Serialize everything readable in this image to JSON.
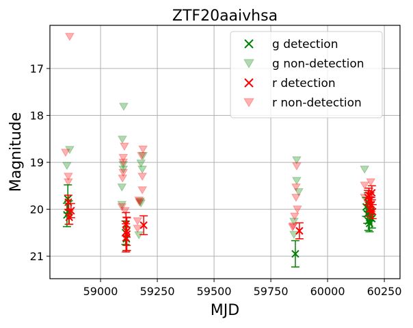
{
  "chart_data": {
    "type": "scatter",
    "title": "ZTF20aaivhsa",
    "xlabel": "MJD",
    "ylabel": "Magnitude",
    "xlim": [
      58777,
      60319
    ],
    "ylim": [
      21.48,
      16.08
    ],
    "y_inverted": true,
    "xticks": [
      59000,
      59250,
      59500,
      59750,
      60000,
      60250
    ],
    "yticks": [
      17,
      18,
      19,
      20,
      21
    ],
    "grid": true,
    "legend_position": "top-right",
    "series": [
      {
        "name": "g detection",
        "marker": "x",
        "color": "#008000",
        "points": [
          {
            "x": 58856,
            "y": 19.78,
            "err": 0.3
          },
          {
            "x": 58852,
            "y": 20.12,
            "err": 0.25
          },
          {
            "x": 58860,
            "y": 20.07,
            "err": 0.25
          },
          {
            "x": 59110,
            "y": 20.5,
            "err": 0.25
          },
          {
            "x": 59114,
            "y": 20.63,
            "err": 0.25
          },
          {
            "x": 59858,
            "y": 20.95,
            "err": 0.28
          },
          {
            "x": 60170,
            "y": 19.95,
            "err": 0.2
          },
          {
            "x": 60175,
            "y": 20.1,
            "err": 0.2
          },
          {
            "x": 60180,
            "y": 20.25,
            "err": 0.2
          },
          {
            "x": 60185,
            "y": 20.3,
            "err": 0.18
          },
          {
            "x": 60190,
            "y": 20.05,
            "err": 0.2
          },
          {
            "x": 60195,
            "y": 20.2,
            "err": 0.2
          },
          {
            "x": 60178,
            "y": 19.85,
            "err": 0.2
          }
        ]
      },
      {
        "name": "g non-detection",
        "marker": "v",
        "color": "#008000",
        "points": [
          {
            "x": 58864,
            "y": 18.73
          },
          {
            "x": 58852,
            "y": 19.07
          },
          {
            "x": 59102,
            "y": 17.81
          },
          {
            "x": 59096,
            "y": 18.51
          },
          {
            "x": 59100,
            "y": 19.05
          },
          {
            "x": 59100,
            "y": 19.15
          },
          {
            "x": 59094,
            "y": 19.53
          },
          {
            "x": 59094,
            "y": 19.9
          },
          {
            "x": 59187,
            "y": 18.86
          },
          {
            "x": 59178,
            "y": 19.02
          },
          {
            "x": 59184,
            "y": 19.15
          },
          {
            "x": 59175,
            "y": 19.83
          },
          {
            "x": 59178,
            "y": 19.87
          },
          {
            "x": 59169,
            "y": 20.55
          },
          {
            "x": 59864,
            "y": 18.95
          },
          {
            "x": 59864,
            "y": 19.39
          },
          {
            "x": 59873,
            "y": 19.63
          },
          {
            "x": 59852,
            "y": 20.26
          },
          {
            "x": 59852,
            "y": 20.54
          },
          {
            "x": 60163,
            "y": 19.15
          }
        ]
      },
      {
        "name": "r detection",
        "marker": "x",
        "color": "#ff0000",
        "points": [
          {
            "x": 58858,
            "y": 19.85,
            "err": 0.15
          },
          {
            "x": 58870,
            "y": 20.03,
            "err": 0.15
          },
          {
            "x": 58862,
            "y": 20.17,
            "err": 0.15
          },
          {
            "x": 59112,
            "y": 20.32,
            "err": 0.25
          },
          {
            "x": 59115,
            "y": 20.47,
            "err": 0.3
          },
          {
            "x": 59112,
            "y": 20.61,
            "err": 0.3
          },
          {
            "x": 59116,
            "y": 20.53,
            "err": 0.35
          },
          {
            "x": 59190,
            "y": 20.34,
            "err": 0.2
          },
          {
            "x": 59876,
            "y": 20.46,
            "err": 0.17
          },
          {
            "x": 60182,
            "y": 19.7,
            "err": 0.15
          },
          {
            "x": 60188,
            "y": 19.8,
            "err": 0.15
          },
          {
            "x": 60192,
            "y": 19.9,
            "err": 0.15
          },
          {
            "x": 60185,
            "y": 20.0,
            "err": 0.15
          },
          {
            "x": 60198,
            "y": 20.05,
            "err": 0.15
          },
          {
            "x": 60178,
            "y": 19.75,
            "err": 0.15
          },
          {
            "x": 60195,
            "y": 19.65,
            "err": 0.15
          }
        ]
      },
      {
        "name": "r non-detection",
        "marker": "v",
        "color": "#ff0000",
        "points": [
          {
            "x": 58864,
            "y": 16.32
          },
          {
            "x": 58846,
            "y": 18.79
          },
          {
            "x": 58858,
            "y": 19.3
          },
          {
            "x": 58858,
            "y": 19.42
          },
          {
            "x": 59105,
            "y": 18.66
          },
          {
            "x": 59100,
            "y": 18.9
          },
          {
            "x": 59100,
            "y": 19.0
          },
          {
            "x": 59100,
            "y": 19.22
          },
          {
            "x": 59097,
            "y": 19.34
          },
          {
            "x": 59108,
            "y": 20.03
          },
          {
            "x": 59094,
            "y": 19.95
          },
          {
            "x": 59187,
            "y": 18.72
          },
          {
            "x": 59181,
            "y": 18.86
          },
          {
            "x": 59184,
            "y": 19.3
          },
          {
            "x": 59184,
            "y": 19.59
          },
          {
            "x": 59169,
            "y": 19.81
          },
          {
            "x": 59172,
            "y": 19.85
          },
          {
            "x": 59163,
            "y": 20.25
          },
          {
            "x": 59163,
            "y": 20.41
          },
          {
            "x": 59864,
            "y": 19.08
          },
          {
            "x": 59861,
            "y": 19.53
          },
          {
            "x": 59861,
            "y": 19.75
          },
          {
            "x": 59867,
            "y": 20.0
          },
          {
            "x": 59855,
            "y": 20.15
          },
          {
            "x": 59849,
            "y": 20.36
          },
          {
            "x": 59846,
            "y": 20.38
          },
          {
            "x": 60190,
            "y": 19.42
          },
          {
            "x": 60163,
            "y": 19.49
          },
          {
            "x": 60163,
            "y": 19.75
          }
        ]
      }
    ]
  }
}
